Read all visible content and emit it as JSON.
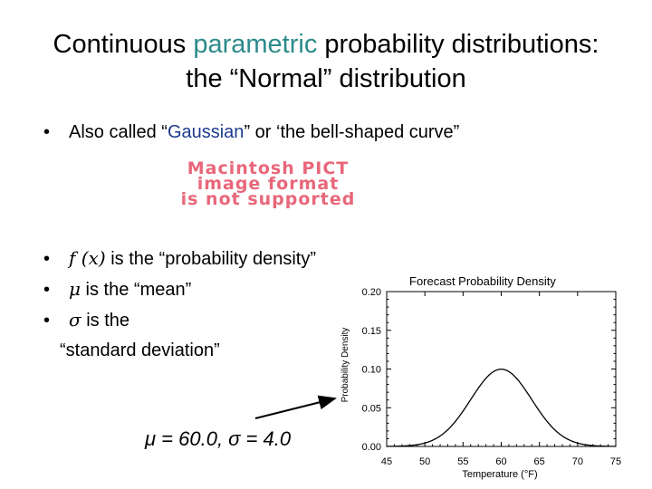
{
  "title": {
    "line1_prefix": "Continuous ",
    "line1_accent": "parametric",
    "line1_suffix": " probability distributions:",
    "line2": "the “Normal” distribution"
  },
  "bullets": {
    "b1_prefix": "Also called “",
    "b1_accent": "Gaussian",
    "b1_suffix": "” or ‘the bell-shaped curve”",
    "b2_symbol": "f (x)",
    "b2_text": " is the “probability density”",
    "b3_symbol": "μ",
    "b3_text": " is the “mean”",
    "b4_symbol": "σ",
    "b4_text": " is the",
    "b4_line2": "“standard deviation”"
  },
  "placeholder": {
    "line1": "Macintosh PICT",
    "line2": "image format",
    "line3": "is not supported"
  },
  "caption": "μ = 60.0,  σ = 4.0",
  "colors": {
    "accent_teal": "#2b8a8a",
    "accent_blue": "#1f3b8f",
    "placeholder_red": "#e8677a"
  },
  "chart_data": {
    "type": "line",
    "title": "Forecast Probability Density",
    "xlabel": "Temperature (°F)",
    "ylabel": "Probability Density",
    "xlim": [
      45,
      75
    ],
    "ylim": [
      0,
      0.2
    ],
    "xticks": [
      45,
      50,
      55,
      60,
      65,
      70,
      75
    ],
    "yticks": [
      "0.00",
      "0.05",
      "0.10",
      "0.15",
      "0.20"
    ],
    "mean": 60.0,
    "sd": 4.0,
    "grid": false
  }
}
